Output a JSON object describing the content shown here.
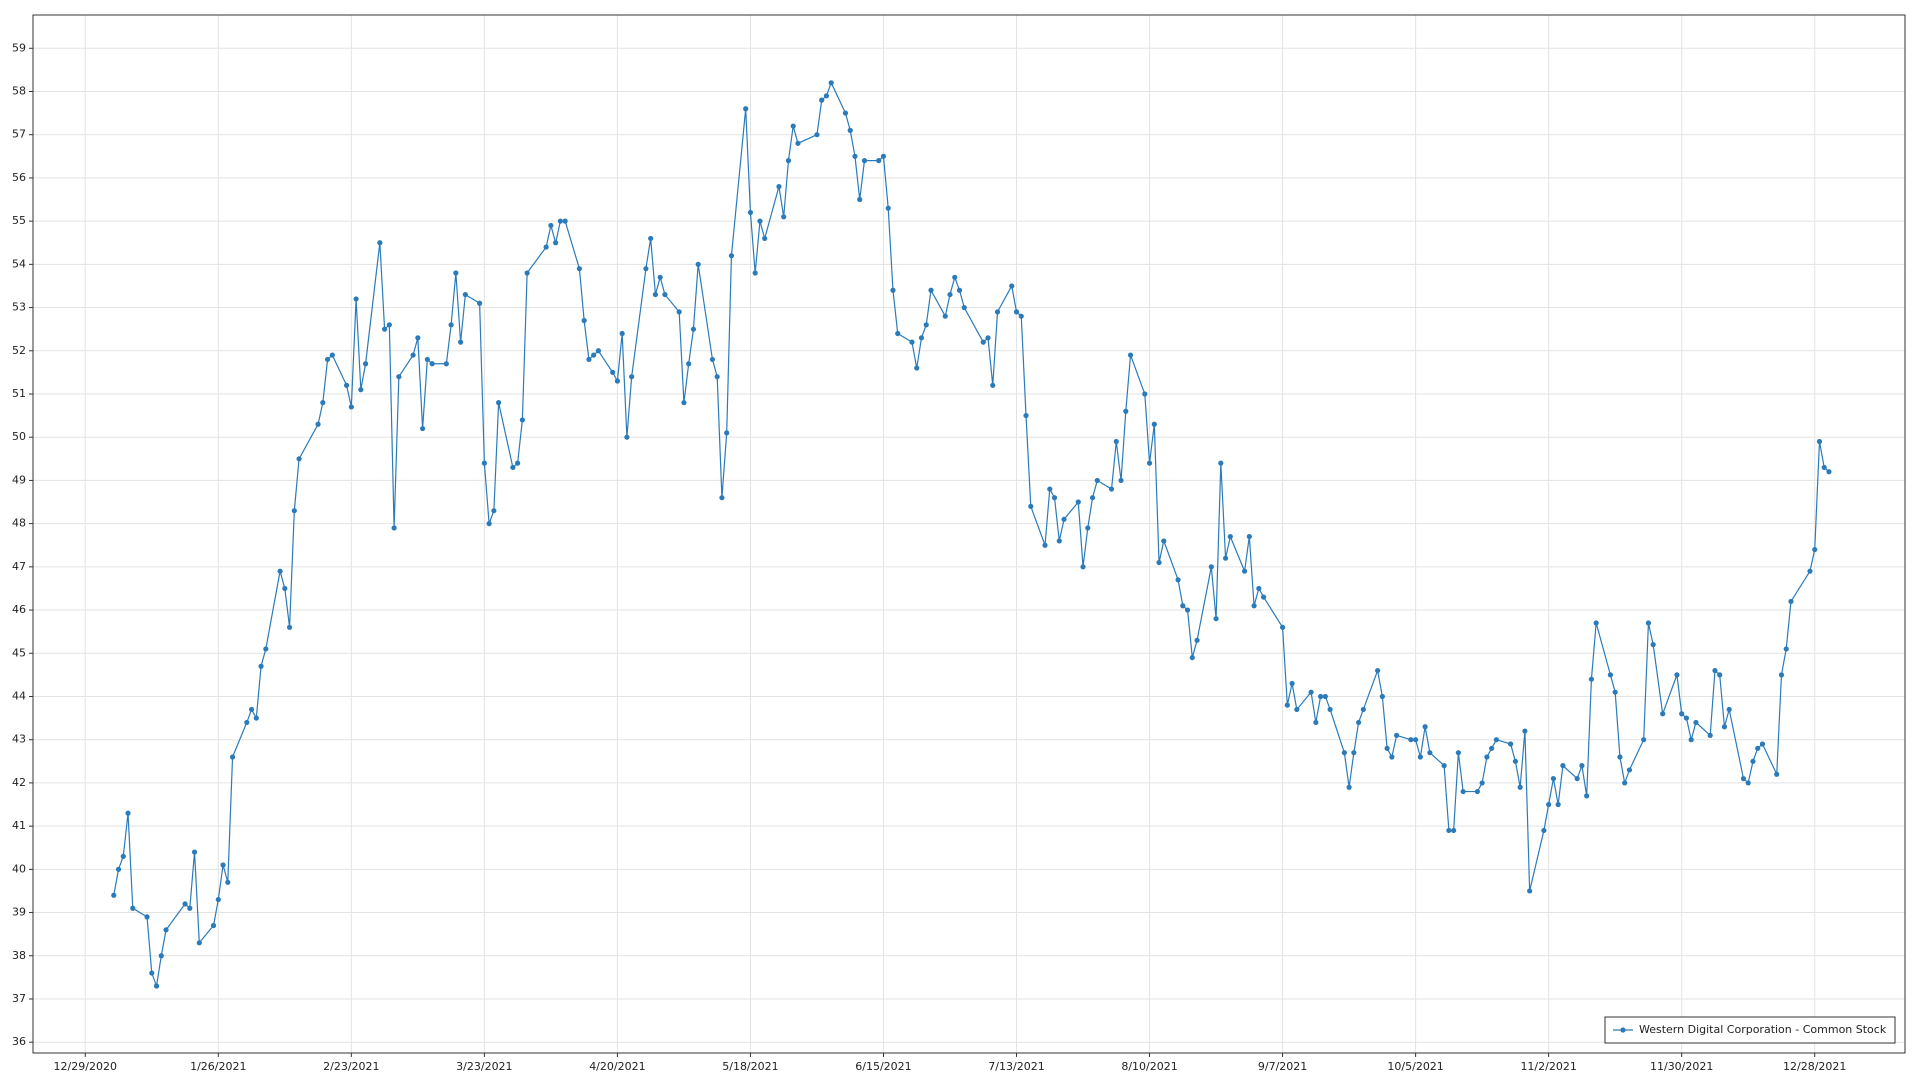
{
  "chart_data": {
    "type": "line",
    "x": [
      "1/4/2021",
      "1/5/2021",
      "1/6/2021",
      "1/7/2021",
      "1/8/2021",
      "1/11/2021",
      "1/12/2021",
      "1/13/2021",
      "1/14/2021",
      "1/15/2021",
      "1/19/2021",
      "1/20/2021",
      "1/21/2021",
      "1/22/2021",
      "1/25/2021",
      "1/26/2021",
      "1/27/2021",
      "1/28/2021",
      "1/29/2021",
      "2/1/2021",
      "2/2/2021",
      "2/3/2021",
      "2/4/2021",
      "2/5/2021",
      "2/8/2021",
      "2/9/2021",
      "2/10/2021",
      "2/11/2021",
      "2/12/2021",
      "2/16/2021",
      "2/17/2021",
      "2/18/2021",
      "2/19/2021",
      "2/22/2021",
      "2/23/2021",
      "2/24/2021",
      "2/25/2021",
      "2/26/2021",
      "3/1/2021",
      "3/2/2021",
      "3/3/2021",
      "3/4/2021",
      "3/5/2021",
      "3/8/2021",
      "3/9/2021",
      "3/10/2021",
      "3/11/2021",
      "3/12/2021",
      "3/15/2021",
      "3/16/2021",
      "3/17/2021",
      "3/18/2021",
      "3/19/2021",
      "3/22/2021",
      "3/23/2021",
      "3/24/2021",
      "3/25/2021",
      "3/26/2021",
      "3/29/2021",
      "3/30/2021",
      "3/31/2021",
      "4/1/2021",
      "4/5/2021",
      "4/6/2021",
      "4/7/2021",
      "4/8/2021",
      "4/9/2021",
      "4/12/2021",
      "4/13/2021",
      "4/14/2021",
      "4/15/2021",
      "4/16/2021",
      "4/19/2021",
      "4/20/2021",
      "4/21/2021",
      "4/22/2021",
      "4/23/2021",
      "4/26/2021",
      "4/27/2021",
      "4/28/2021",
      "4/29/2021",
      "4/30/2021",
      "5/3/2021",
      "5/4/2021",
      "5/5/2021",
      "5/6/2021",
      "5/7/2021",
      "5/10/2021",
      "5/11/2021",
      "5/12/2021",
      "5/13/2021",
      "5/14/2021",
      "5/17/2021",
      "5/18/2021",
      "5/19/2021",
      "5/20/2021",
      "5/21/2021",
      "5/24/2021",
      "5/25/2021",
      "5/26/2021",
      "5/27/2021",
      "5/28/2021",
      "6/1/2021",
      "6/2/2021",
      "6/3/2021",
      "6/4/2021",
      "6/7/2021",
      "6/8/2021",
      "6/9/2021",
      "6/10/2021",
      "6/11/2021",
      "6/14/2021",
      "6/15/2021",
      "6/16/2021",
      "6/17/2021",
      "6/18/2021",
      "6/21/2021",
      "6/22/2021",
      "6/23/2021",
      "6/24/2021",
      "6/25/2021",
      "6/28/2021",
      "6/29/2021",
      "6/30/2021",
      "7/1/2021",
      "7/2/2021",
      "7/6/2021",
      "7/7/2021",
      "7/8/2021",
      "7/9/2021",
      "7/12/2021",
      "7/13/2021",
      "7/14/2021",
      "7/15/2021",
      "7/16/2021",
      "7/19/2021",
      "7/20/2021",
      "7/21/2021",
      "7/22/2021",
      "7/23/2021",
      "7/26/2021",
      "7/27/2021",
      "7/28/2021",
      "7/29/2021",
      "7/30/2021",
      "8/2/2021",
      "8/3/2021",
      "8/4/2021",
      "8/5/2021",
      "8/6/2021",
      "8/9/2021",
      "8/10/2021",
      "8/11/2021",
      "8/12/2021",
      "8/13/2021",
      "8/16/2021",
      "8/17/2021",
      "8/18/2021",
      "8/19/2021",
      "8/20/2021",
      "8/23/2021",
      "8/24/2021",
      "8/25/2021",
      "8/26/2021",
      "8/27/2021",
      "8/30/2021",
      "8/31/2021",
      "9/1/2021",
      "9/2/2021",
      "9/3/2021",
      "9/7/2021",
      "9/8/2021",
      "9/9/2021",
      "9/10/2021",
      "9/13/2021",
      "9/14/2021",
      "9/15/2021",
      "9/16/2021",
      "9/17/2021",
      "9/20/2021",
      "9/21/2021",
      "9/22/2021",
      "9/23/2021",
      "9/24/2021",
      "9/27/2021",
      "9/28/2021",
      "9/29/2021",
      "9/30/2021",
      "10/1/2021",
      "10/4/2021",
      "10/5/2021",
      "10/6/2021",
      "10/7/2021",
      "10/8/2021",
      "10/11/2021",
      "10/12/2021",
      "10/13/2021",
      "10/14/2021",
      "10/15/2021",
      "10/18/2021",
      "10/19/2021",
      "10/20/2021",
      "10/21/2021",
      "10/22/2021",
      "10/25/2021",
      "10/26/2021",
      "10/27/2021",
      "10/28/2021",
      "10/29/2021",
      "11/1/2021",
      "11/2/2021",
      "11/3/2021",
      "11/4/2021",
      "11/5/2021",
      "11/8/2021",
      "11/9/2021",
      "11/10/2021",
      "11/11/2021",
      "11/12/2021",
      "11/15/2021",
      "11/16/2021",
      "11/17/2021",
      "11/18/2021",
      "11/19/2021",
      "11/22/2021",
      "11/23/2021",
      "11/24/2021",
      "11/26/2021",
      "11/29/2021",
      "11/30/2021",
      "12/1/2021",
      "12/2/2021",
      "12/3/2021",
      "12/6/2021",
      "12/7/2021",
      "12/8/2021",
      "12/9/2021",
      "12/10/2021",
      "12/13/2021",
      "12/14/2021",
      "12/15/2021",
      "12/16/2021",
      "12/17/2021",
      "12/20/2021",
      "12/21/2021",
      "12/22/2021",
      "12/23/2021",
      "12/27/2021",
      "12/28/2021",
      "12/29/2021",
      "12/30/2021",
      "12/31/2021"
    ],
    "series": [
      {
        "name": "Western Digital Corporation - Common Stock",
        "color": "#2b7bba",
        "values": [
          39.4,
          40.0,
          40.3,
          41.3,
          39.1,
          38.9,
          37.6,
          37.3,
          38.0,
          38.6,
          39.2,
          39.1,
          40.4,
          38.3,
          38.7,
          39.3,
          40.1,
          39.7,
          42.6,
          43.4,
          43.7,
          43.5,
          44.7,
          45.1,
          46.9,
          46.5,
          45.6,
          48.3,
          49.5,
          50.3,
          50.8,
          51.8,
          51.9,
          51.2,
          50.7,
          53.2,
          51.1,
          51.7,
          54.5,
          52.5,
          52.6,
          47.9,
          51.4,
          51.9,
          52.3,
          50.2,
          51.8,
          51.7,
          51.7,
          52.6,
          53.8,
          52.2,
          53.3,
          53.1,
          49.4,
          48.0,
          48.3,
          50.8,
          49.3,
          49.4,
          50.4,
          53.8,
          54.4,
          54.9,
          54.5,
          55.0,
          55.0,
          53.9,
          52.7,
          51.8,
          51.9,
          52.0,
          51.5,
          51.3,
          52.4,
          50.0,
          51.4,
          53.9,
          54.6,
          53.3,
          53.7,
          53.3,
          52.9,
          50.8,
          51.7,
          52.5,
          54.0,
          51.8,
          51.4,
          48.6,
          50.1,
          54.2,
          57.6,
          55.2,
          53.8,
          55.0,
          54.6,
          55.8,
          55.1,
          56.4,
          57.2,
          56.8,
          57.0,
          57.8,
          57.9,
          58.2,
          57.5,
          57.1,
          56.5,
          55.5,
          56.4,
          56.4,
          56.5,
          55.3,
          53.4,
          52.4,
          52.2,
          51.6,
          52.3,
          52.6,
          53.4,
          52.8,
          53.3,
          53.7,
          53.4,
          53.0,
          52.2,
          52.3,
          51.2,
          52.9,
          53.5,
          52.9,
          52.8,
          50.5,
          48.4,
          47.5,
          48.8,
          48.6,
          47.6,
          48.1,
          48.5,
          47.0,
          47.9,
          48.6,
          49.0,
          48.8,
          49.9,
          49.0,
          50.6,
          51.9,
          51.0,
          49.4,
          50.3,
          47.1,
          47.6,
          46.7,
          46.1,
          46.0,
          44.9,
          45.3,
          47.0,
          45.8,
          49.4,
          47.2,
          47.7,
          46.9,
          47.7,
          46.1,
          46.5,
          46.3,
          45.6,
          43.8,
          44.3,
          43.7,
          44.1,
          43.4,
          44.0,
          44.0,
          43.7,
          42.7,
          41.9,
          42.7,
          43.4,
          43.7,
          44.6,
          44.0,
          42.8,
          42.6,
          43.1,
          43.0,
          43.0,
          42.6,
          43.3,
          42.7,
          42.4,
          40.9,
          40.9,
          42.7,
          41.8,
          41.8,
          42.0,
          42.6,
          42.8,
          43.0,
          42.9,
          42.5,
          41.9,
          43.2,
          39.5,
          40.9,
          41.5,
          42.1,
          41.5,
          42.4,
          42.1,
          42.4,
          41.7,
          44.4,
          45.7,
          44.5,
          44.1,
          42.6,
          42.0,
          42.3,
          43.0,
          45.7,
          45.2,
          43.6,
          44.5,
          43.6,
          43.5,
          43.0,
          43.4,
          43.1,
          44.6,
          44.5,
          43.3,
          43.7,
          42.1,
          42.0,
          42.5,
          42.8,
          42.9,
          42.2,
          44.5,
          45.1,
          46.2,
          46.9,
          47.4,
          49.9,
          49.3,
          49.2
        ]
      }
    ],
    "xlim": [
      "12/18/2020",
      "1/16/2022"
    ],
    "xticks": [
      "12/29/2020",
      "1/26/2021",
      "2/23/2021",
      "3/23/2021",
      "4/20/2021",
      "5/18/2021",
      "6/15/2021",
      "7/13/2021",
      "8/10/2021",
      "9/7/2021",
      "10/5/2021",
      "11/2/2021",
      "11/30/2021",
      "12/28/2021"
    ],
    "ylim": [
      35.75,
      59.77
    ],
    "yticks": [
      36,
      37,
      38,
      39,
      40,
      41,
      42,
      43,
      44,
      45,
      46,
      47,
      48,
      49,
      50,
      51,
      52,
      53,
      54,
      55,
      56,
      57,
      58,
      59
    ],
    "grid": true,
    "legend": "lower right"
  }
}
